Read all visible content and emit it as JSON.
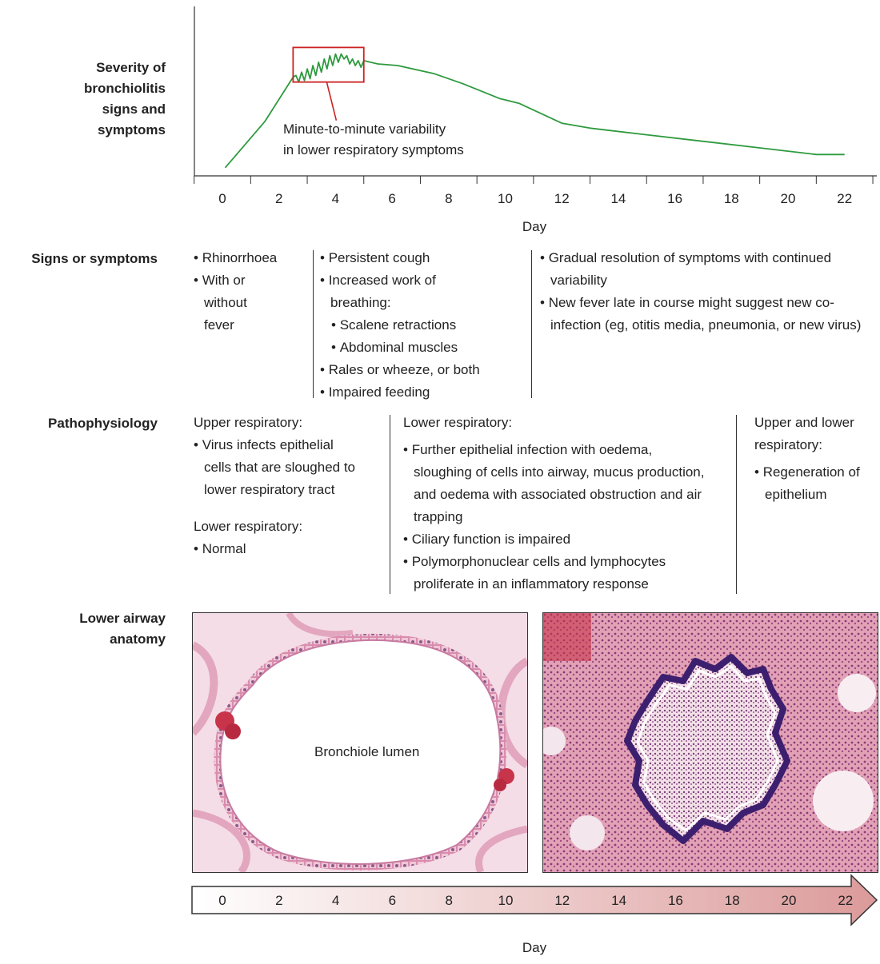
{
  "severity_label": [
    "Severity of",
    "bronchiolitis",
    "signs and",
    "symptoms"
  ],
  "chart_data": {
    "type": "line",
    "title": "",
    "ylabel": "Severity of bronchiolitis signs and symptoms",
    "xlabel": "Day",
    "xticks": [
      0,
      2,
      4,
      6,
      8,
      10,
      12,
      14,
      16,
      18,
      20,
      22
    ],
    "xlim": [
      -1,
      23
    ],
    "ylim": [
      0,
      10
    ],
    "series": [
      {
        "name": "",
        "x": [
          0.1,
          1.5,
          2.5,
          2.6,
          2.7,
          2.8,
          2.9,
          3.0,
          3.1,
          3.2,
          3.3,
          3.4,
          3.5,
          3.6,
          3.7,
          3.8,
          3.9,
          4.0,
          4.1,
          4.2,
          4.3,
          4.4,
          4.5,
          4.6,
          4.7,
          4.8,
          4.9,
          5.0,
          5.5,
          6.2,
          7.5,
          8.5,
          9.8,
          10.5,
          12.0,
          13.0,
          15.0,
          17.0,
          19.0,
          21.0,
          22.0
        ],
        "y": [
          0.4,
          3.2,
          5.9,
          6.0,
          5.6,
          6.2,
          5.7,
          6.4,
          5.8,
          6.6,
          6.0,
          6.8,
          6.2,
          7.0,
          6.4,
          7.2,
          6.6,
          7.3,
          6.8,
          7.3,
          7.0,
          7.2,
          6.7,
          7.0,
          6.6,
          6.9,
          6.5,
          6.9,
          6.7,
          6.6,
          6.1,
          5.5,
          4.6,
          4.3,
          3.1,
          2.8,
          2.4,
          2.0,
          1.6,
          1.2,
          1.2
        ]
      }
    ],
    "annotation": {
      "text_lines": [
        "Minute-to-minute variability",
        "in lower respiratory symptoms"
      ],
      "box_x": [
        2.5,
        5.0
      ],
      "box_y": [
        5.6,
        7.7
      ],
      "color": "#cc2222"
    },
    "line_color": "#2e9a3e"
  },
  "signs_label": "Signs or symptoms",
  "signs": {
    "col1": [
      "Rhinorrhoea",
      "With or without fever"
    ],
    "col2": [
      {
        "t": "Persistent cough",
        "sub": false
      },
      {
        "t": "Increased work of breathing:",
        "sub": false
      },
      {
        "t": "Scalene retractions",
        "sub": true
      },
      {
        "t": "Abdominal muscles",
        "sub": true
      },
      {
        "t": "Rales or wheeze, or both",
        "sub": false
      },
      {
        "t": "Impaired feeding",
        "sub": false
      }
    ],
    "col3": [
      "Gradual resolution of symptoms with continued variability",
      "New fever late in course might suggest new co-infection (eg, otitis media, pneumonia, or new virus)"
    ]
  },
  "patho_label": "Pathophysiology",
  "patho": {
    "col1": {
      "heading1": "Upper respiratory:",
      "items1": [
        "Virus infects epithelial cells that are sloughed to lower respiratory tract"
      ],
      "heading2": "Lower respiratory:",
      "items2": [
        "Normal"
      ]
    },
    "col2": {
      "heading": "Lower respiratory:",
      "items": [
        "Further epithelial infection with oedema, sloughing of cells into airway, mucus production, and oedema with associated obstruction and air trapping",
        "Ciliary function is impaired",
        "Polymorphonuclear cells and lymphocytes proliferate in an inflammatory response"
      ]
    },
    "col3": {
      "heading": "Upper and lower respiratory:",
      "items": [
        "Regeneration of epithelium"
      ]
    }
  },
  "anatomy_label": [
    "Lower airway",
    "anatomy"
  ],
  "anatomy": {
    "left_caption": "Bronchiole lumen"
  },
  "timeline": {
    "ticks": [
      "0",
      "2",
      "4",
      "6",
      "8",
      "10",
      "12",
      "14",
      "16",
      "18",
      "20",
      "22"
    ],
    "label": "Day",
    "color_start": "#ffffff",
    "color_end": "#dc9a9a"
  }
}
